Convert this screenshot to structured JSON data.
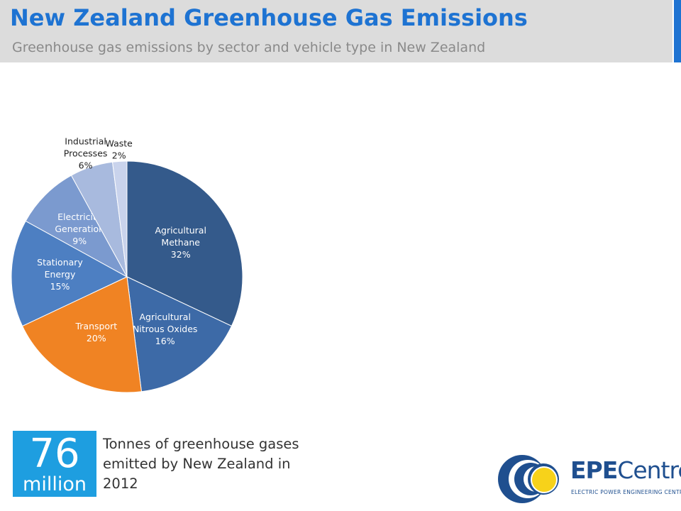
{
  "header": {
    "title": "New Zealand Greenhouse Gas Emissions",
    "subtitle": "Greenhouse gas emissions by sector and vehicle type in New Zealand"
  },
  "chart_data": {
    "type": "pie",
    "slices": [
      {
        "label": [
          "Agricultural",
          "Methane",
          "32%"
        ],
        "value": 32,
        "color": "#345a8b"
      },
      {
        "label": [
          "Agricultural",
          "Nitrous Oxides",
          "16%"
        ],
        "value": 16,
        "color": "#3d6aa7"
      },
      {
        "label": [
          "Transport",
          "20%"
        ],
        "value": 20,
        "color": "#f08323"
      },
      {
        "label": [
          "Stationary",
          "Energy",
          "15%"
        ],
        "value": 15,
        "color": "#4d7fc2"
      },
      {
        "label": [
          "Electricity",
          "Generation",
          "9%"
        ],
        "value": 9,
        "color": "#7b9acf"
      },
      {
        "label": [
          "Industrial",
          "Processes",
          "6%"
        ],
        "value": 6,
        "color": "#a8bade"
      },
      {
        "label": [
          "Waste",
          "2%"
        ],
        "value": 2,
        "color": "#c9d3ec"
      }
    ]
  },
  "stat": {
    "number": "76",
    "unit": "million",
    "description": "Tonnes of greenhouse gases emitted by New Zealand in 2012",
    "box_color": "#1e9ee0"
  },
  "logo": {
    "name_bold": "EPE",
    "name_light": "Centre",
    "tagline": "ELECTRIC POWER ENGINEERING CENTRE"
  }
}
